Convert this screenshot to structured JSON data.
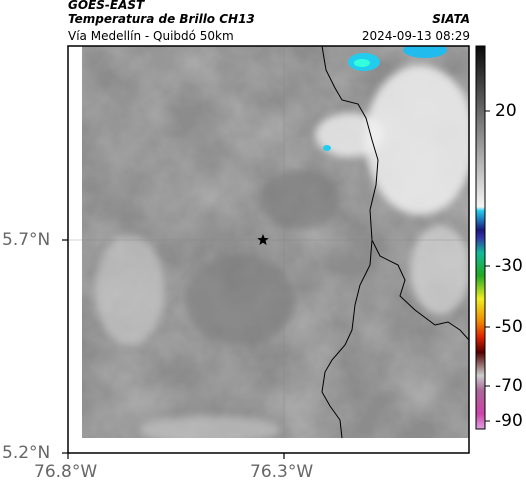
{
  "header": {
    "satellite": "GOES-EAST",
    "product": "Temperatura de Brillo CH13",
    "region": "Vía Medellín - Quibdó 50km",
    "agency": "SIATA",
    "timestamp": "2024-09-13 08:29"
  },
  "map": {
    "lat_ticks": [
      "5.7°N",
      "5.2°N"
    ],
    "lon_ticks": [
      "76.8°W",
      "76.3°W"
    ],
    "marker_icon": "star-icon"
  },
  "colorbar": {
    "ticks": [
      "20",
      "-30",
      "-50",
      "-70",
      "-90"
    ],
    "colors": {
      "warm_gray": "#9a9a9a",
      "cold_cyan": "#22ccee",
      "navy": "#1a1a7a",
      "green": "#22aa22",
      "yellow": "#eeee22",
      "red": "#dd2200",
      "magenta": "#cc44aa"
    }
  }
}
